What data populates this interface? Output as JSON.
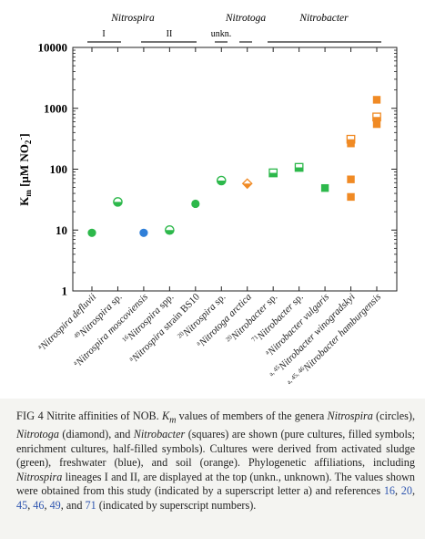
{
  "figure": {
    "group_labels": {
      "nitrospira": "Nitrospira",
      "nitrotoga": "Nitrotoga",
      "nitrobacter": "Nitrobacter"
    },
    "lineage_labels": {
      "l1": "I",
      "l2": "II",
      "unkn": "unkn."
    },
    "ylabel": {
      "k": "K",
      "m": "m",
      "rest": " [µM NO",
      "two": "2",
      "minus": "-",
      "close": "]"
    },
    "yticks": [
      "10000",
      "1000",
      "100",
      "10",
      "1"
    ],
    "categories": [
      {
        "sup": "a",
        "name": "Nitrospira defluvii",
        "extra": ""
      },
      {
        "sup": "49",
        "name": "Nitrospira",
        "extra": " sp."
      },
      {
        "sup": "a",
        "name": "Nitrospira moscoviensis",
        "extra": ""
      },
      {
        "sup": "16",
        "name": "Nitrospira",
        "extra": " spp."
      },
      {
        "sup": "a",
        "name": "Nitrospira",
        "extra": " strain BS10"
      },
      {
        "sup": "20",
        "name": "Nitrospira",
        "extra": " sp."
      },
      {
        "sup": "a",
        "name": "Nitrotoga arctica",
        "extra": ""
      },
      {
        "sup": "20",
        "name": "Nitrobacter",
        "extra": " sp."
      },
      {
        "sup": "71",
        "name": "Nitrobacter",
        "extra": " sp."
      },
      {
        "sup": "a",
        "name": "Nitrobacter vulgaris",
        "extra": ""
      },
      {
        "sup": "a, 45",
        "name": "Nitrobacter winogradskyi",
        "extra": ""
      },
      {
        "sup": "a, 45, 46",
        "name": "Nitrobacter hamburgensis",
        "extra": ""
      }
    ]
  },
  "chart_data": {
    "type": "scatter",
    "y_scale": "log",
    "ylim": [
      1,
      10000
    ],
    "ylabel": "Km [µM NO2-]",
    "colors": {
      "activated_sludge": "#2db84b",
      "freshwater": "#2f7fd8",
      "soil": "#f08a24"
    },
    "points": [
      {
        "category": 0,
        "y": 9,
        "shape": "circle",
        "fill": "filled",
        "color": "activated_sludge"
      },
      {
        "category": 1,
        "y": 29,
        "shape": "circle",
        "fill": "half",
        "color": "activated_sludge"
      },
      {
        "category": 2,
        "y": 9,
        "shape": "circle",
        "fill": "filled",
        "color": "freshwater"
      },
      {
        "category": 3,
        "y": 10,
        "shape": "circle",
        "fill": "half",
        "color": "activated_sludge"
      },
      {
        "category": 4,
        "y": 27,
        "shape": "circle",
        "fill": "filled",
        "color": "activated_sludge"
      },
      {
        "category": 5,
        "y": 65,
        "shape": "circle",
        "fill": "half",
        "color": "activated_sludge"
      },
      {
        "category": 6,
        "y": 58,
        "shape": "diamond",
        "fill": "half",
        "color": "soil"
      },
      {
        "category": 7,
        "y": 87,
        "shape": "square",
        "fill": "half",
        "color": "activated_sludge"
      },
      {
        "category": 8,
        "y": 107,
        "shape": "square",
        "fill": "half",
        "color": "activated_sludge"
      },
      {
        "category": 9,
        "y": 49,
        "shape": "square",
        "fill": "filled",
        "color": "activated_sludge"
      },
      {
        "category": 10,
        "y": 35,
        "shape": "square",
        "fill": "filled",
        "color": "soil"
      },
      {
        "category": 10,
        "y": 68,
        "shape": "square",
        "fill": "filled",
        "color": "soil"
      },
      {
        "category": 10,
        "y": 265,
        "shape": "square",
        "fill": "filled",
        "color": "soil"
      },
      {
        "category": 10,
        "y": 310,
        "shape": "square",
        "fill": "half",
        "color": "soil"
      },
      {
        "category": 11,
        "y": 550,
        "shape": "square",
        "fill": "filled",
        "color": "soil"
      },
      {
        "category": 11,
        "y": 720,
        "shape": "square",
        "fill": "half",
        "color": "soil"
      },
      {
        "category": 11,
        "y": 1380,
        "shape": "square",
        "fill": "filled",
        "color": "soil"
      }
    ]
  },
  "caption": {
    "label": "FIG 4",
    "t1": " Nitrite affinities of NOB. ",
    "km_k": "K",
    "km_m": "m",
    "t2": " values of members of the genera ",
    "g1": "Nitrospira",
    "t3": " (circles), ",
    "g2": "Nitrotoga",
    "t4": " (diamond), and ",
    "g3": "Nitrobacter",
    "t5": " (squares) are shown (pure cultures, filled symbols; enrichment cultures, half-filled symbols). Cultures were derived from activated sludge (green), freshwater (blue), and soil (orange). Phylogenetic affiliations, including ",
    "g4": "Nitrospira",
    "t6": " lineages I and II, are displayed at the top (unkn., unknown). The values shown were obtained from this study (indicated by a superscript letter a) and references ",
    "r1": "16",
    "c1": ", ",
    "r2": "20",
    "c2": ", ",
    "r3": "45",
    "c3": ", ",
    "r4": "46",
    "c4": ", ",
    "r5": "49",
    "c5": ", and ",
    "r6": "71",
    "t7": " (indicated by superscript numbers)."
  }
}
